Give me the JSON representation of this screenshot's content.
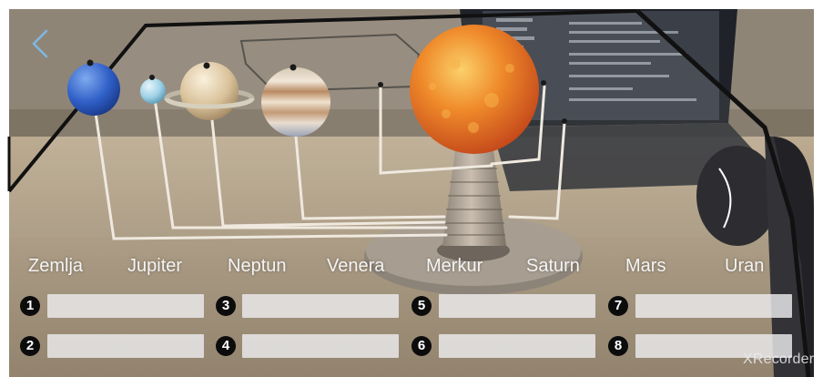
{
  "planet_names": [
    "Zemlja",
    "Jupiter",
    "Neptun",
    "Venera",
    "Merkur",
    "Saturn",
    "Mars",
    "Uran"
  ],
  "slots": [
    {
      "number": "1",
      "value": ""
    },
    {
      "number": "2",
      "value": ""
    },
    {
      "number": "3",
      "value": ""
    },
    {
      "number": "4",
      "value": ""
    },
    {
      "number": "5",
      "value": ""
    },
    {
      "number": "6",
      "value": ""
    },
    {
      "number": "7",
      "value": ""
    },
    {
      "number": "8",
      "value": ""
    }
  ],
  "watermark": "XRecorder",
  "icons": {
    "back": "chevron-left-icon"
  },
  "colors": {
    "accent": "#7fb7e3",
    "badge": "#0c0c0c",
    "field": "#ececee",
    "label": "#f4f4f4"
  }
}
